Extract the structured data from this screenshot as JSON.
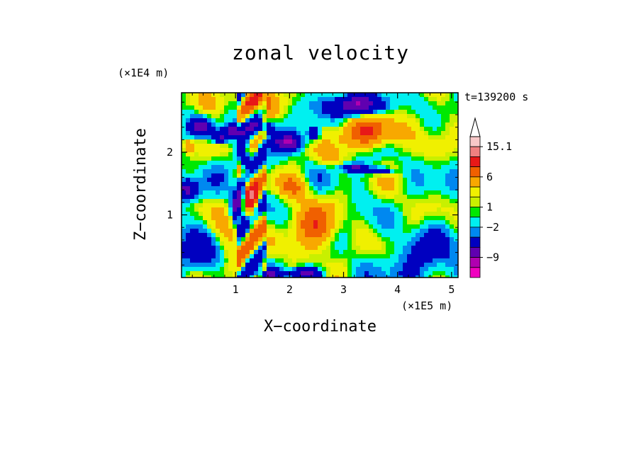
{
  "chart_data": {
    "type": "heatmap",
    "title": "zonal velocity",
    "xlabel": "X−coordinate",
    "ylabel": "Z−coordinate",
    "x_multiplier": "(×1E5 m)",
    "y_multiplier": "(×1E4 m)",
    "time_label": "t=139200 s",
    "xlim": [
      0,
      5.12
    ],
    "ylim": [
      0,
      2.95
    ],
    "x_ticks": [
      "1",
      "2",
      "3",
      "4",
      "5"
    ],
    "x_tick_values": [
      1,
      2,
      3,
      4,
      5
    ],
    "y_ticks": [
      "1",
      "2"
    ],
    "y_tick_values": [
      1,
      2
    ],
    "colorbar": {
      "labels": [
        "15.1",
        "6",
        "1",
        "−2",
        "−9"
      ],
      "colors": [
        "#f8c8c8",
        "#f08080",
        "#e81818",
        "#f06000",
        "#f8a800",
        "#f0f000",
        "#c8f000",
        "#00e800",
        "#00f0f0",
        "#0088f0",
        "#0000c0",
        "#6000b0",
        "#b000b0",
        "#f000c0"
      ],
      "extend_max": true
    },
    "field": {
      "blobs": [
        {
          "x": 4.5,
          "y": 0.25,
          "sx": 0.6,
          "sy": 0.6,
          "a": -2.5
        },
        {
          "x": 0.3,
          "y": 0.4,
          "sx": 0.45,
          "sy": 0.35,
          "a": -3
        },
        {
          "x": 0.1,
          "y": 1.4,
          "sx": 0.2,
          "sy": 0.15,
          "a": -7
        },
        {
          "x": 0.35,
          "y": 2.4,
          "sx": 0.2,
          "sy": 0.12,
          "a": -8
        },
        {
          "x": 0.7,
          "y": 2.25,
          "sx": 0.18,
          "sy": 0.1,
          "a": -8
        },
        {
          "x": 0.95,
          "y": 2.35,
          "sx": 0.15,
          "sy": 0.1,
          "a": -7
        },
        {
          "x": 1.15,
          "y": 1.9,
          "sx": 0.12,
          "sy": 0.15,
          "a": -8
        },
        {
          "x": 1.05,
          "y": 1.15,
          "sx": 0.12,
          "sy": 0.25,
          "a": -10
        },
        {
          "x": 1.5,
          "y": 2.4,
          "sx": 0.25,
          "sy": 0.12,
          "a": -6
        },
        {
          "x": 1.95,
          "y": 2.15,
          "sx": 0.25,
          "sy": 0.12,
          "a": -9
        },
        {
          "x": 2.45,
          "y": 2.3,
          "sx": 0.12,
          "sy": 0.12,
          "a": -6
        },
        {
          "x": 3.3,
          "y": 2.75,
          "sx": 0.45,
          "sy": 0.15,
          "a": -10
        },
        {
          "x": 3.2,
          "y": 1.75,
          "sx": 0.25,
          "sy": 0.06,
          "a": -7
        },
        {
          "x": 3.7,
          "y": 1.7,
          "sx": 0.2,
          "sy": 0.06,
          "a": -6
        },
        {
          "x": 2.3,
          "y": 0.05,
          "sx": 0.3,
          "sy": 0.1,
          "a": -8
        },
        {
          "x": 1.65,
          "y": 0.05,
          "sx": 0.2,
          "sy": 0.08,
          "a": -6
        },
        {
          "x": 3.5,
          "y": 2.3,
          "sx": 0.6,
          "sy": 0.25,
          "a": 6
        },
        {
          "x": 2.45,
          "y": 0.75,
          "sx": 0.45,
          "sy": 0.4,
          "a": 5
        },
        {
          "x": 1.3,
          "y": 1.2,
          "sx": 0.15,
          "sy": 0.35,
          "a": 7
        },
        {
          "x": 1.5,
          "y": 2.85,
          "sx": 0.3,
          "sy": 0.2,
          "a": 5
        },
        {
          "x": 0.5,
          "y": 2.75,
          "sx": 0.3,
          "sy": 0.2,
          "a": 4
        },
        {
          "x": 0.9,
          "y": 0.6,
          "sx": 0.3,
          "sy": 0.4,
          "a": 3
        },
        {
          "x": 2.1,
          "y": 1.45,
          "sx": 0.3,
          "sy": 0.2,
          "a": 4
        },
        {
          "x": 4.0,
          "y": 1.2,
          "sx": 0.5,
          "sy": 0.4,
          "a": 1
        },
        {
          "x": 4.8,
          "y": 2.6,
          "sx": 0.3,
          "sy": 0.3,
          "a": 2
        },
        {
          "x": 0.15,
          "y": 2.1,
          "sx": 0.1,
          "sy": 0.1,
          "a": 4
        },
        {
          "x": 2.7,
          "y": 1.9,
          "sx": 0.25,
          "sy": 0.15,
          "a": 2
        }
      ],
      "waves": [
        {
          "ax": 3.0,
          "ay": 6.0,
          "amp": 1.6
        },
        {
          "ax": 7.0,
          "ay": 4.0,
          "amp": 1.0
        }
      ],
      "stripe_band": {
        "x0": 1.05,
        "x1": 1.6,
        "freq": 70,
        "amp": 4
      }
    }
  }
}
